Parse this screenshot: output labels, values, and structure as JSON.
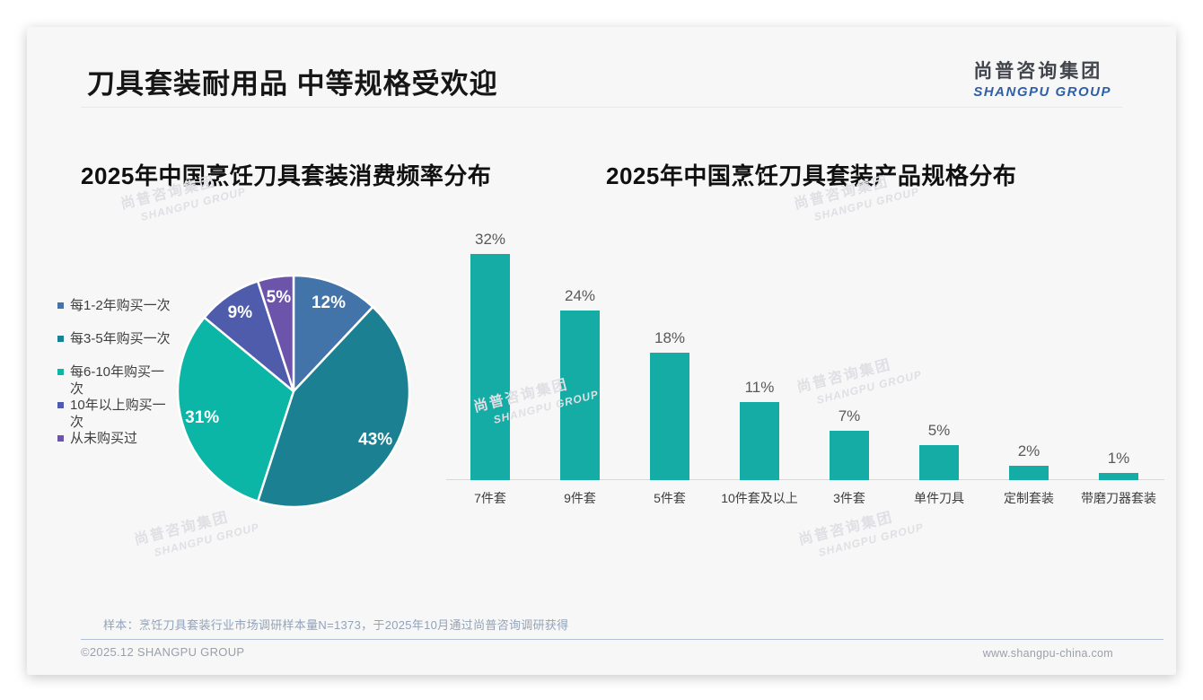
{
  "slide": {
    "title": "刀具套装耐用品 中等规格受欢迎"
  },
  "logo": {
    "cn": "尚普咨询集团",
    "en": "SHANGPU GROUP"
  },
  "watermark": {
    "cn": "尚普咨询集团",
    "en": "SHANGPU GROUP"
  },
  "chart_data": [
    {
      "type": "pie",
      "title": "2025年中国烹饪刀具套装消费频率分布",
      "categories": [
        "每1-2年购买一次",
        "每3-5年购买一次",
        "每6-10年购买一次",
        "10年以上购买一次",
        "从未购买过"
      ],
      "values": [
        12,
        43,
        31,
        9,
        5
      ],
      "unit": "%",
      "data_labels": [
        "12%",
        "43%",
        "31%",
        "9%",
        "5%"
      ],
      "colors": [
        "#4273A9",
        "#1A8092",
        "#0CB6A6",
        "#4F5CAB",
        "#6C54AB"
      ],
      "legend_lines": [
        [
          "每1-2年购买一次"
        ],
        [
          "每3-5年购买一次"
        ],
        [
          "每6-10年购买一",
          "次"
        ],
        [
          "10年以上购买一",
          "次"
        ],
        [
          "从未购买过"
        ]
      ],
      "legend_position": "left",
      "start_angle_deg": 0,
      "direction": "clockwise"
    },
    {
      "type": "bar",
      "title": "2025年中国烹饪刀具套装产品规格分布",
      "categories": [
        "7件套",
        "9件套",
        "5件套",
        "10件套及以上",
        "3件套",
        "单件刀具",
        "定制套装",
        "带磨刀器套装"
      ],
      "values": [
        32,
        24,
        18,
        11,
        7,
        5,
        2,
        1
      ],
      "unit": "%",
      "data_labels": [
        "32%",
        "24%",
        "18%",
        "11%",
        "7%",
        "5%",
        "2%",
        "1%"
      ],
      "bar_color": "#14ACA4",
      "value_label_color": "#595959",
      "ylim": [
        0,
        34
      ],
      "grid": false,
      "legend_position": "none"
    }
  ],
  "footer": {
    "note": "样本：烹饪刀具套装行业市场调研样本量N=1373，于2025年10月通过尚普咨询调研获得",
    "copyright": "©2025.12 SHANGPU GROUP",
    "website": "www.shangpu-china.com"
  }
}
